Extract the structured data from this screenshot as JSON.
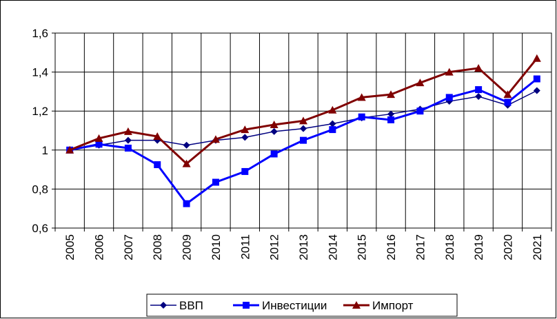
{
  "chart_data": {
    "type": "line",
    "categories": [
      "2005",
      "2006",
      "2007",
      "2008",
      "2009",
      "2010",
      "2011",
      "2012",
      "2013",
      "2014",
      "2015",
      "2016",
      "2017",
      "2018",
      "2019",
      "2020",
      "2021"
    ],
    "series": [
      {
        "name": "ВВП",
        "color": "#000080",
        "marker": "diamond",
        "values": [
          1.0,
          1.025,
          1.05,
          1.05,
          1.025,
          1.05,
          1.065,
          1.095,
          1.11,
          1.135,
          1.165,
          1.185,
          1.21,
          1.25,
          1.275,
          1.23,
          1.305
        ]
      },
      {
        "name": "Инвестиции",
        "color": "#0000ff",
        "marker": "square",
        "values": [
          1.0,
          1.03,
          1.01,
          0.925,
          0.725,
          0.835,
          0.89,
          0.98,
          1.05,
          1.105,
          1.17,
          1.155,
          1.2,
          1.27,
          1.31,
          1.245,
          1.365
        ]
      },
      {
        "name": "Импорт",
        "color": "#800000",
        "marker": "triangle",
        "values": [
          1.0,
          1.06,
          1.095,
          1.07,
          0.93,
          1.055,
          1.105,
          1.13,
          1.15,
          1.205,
          1.27,
          1.285,
          1.345,
          1.4,
          1.42,
          1.285,
          1.47
        ]
      }
    ],
    "ylim": [
      0.6,
      1.6
    ],
    "yticks": [
      {
        "value": 0.6,
        "label": "0,6"
      },
      {
        "value": 0.8,
        "label": "0,8"
      },
      1,
      {
        "value": 1.2,
        "label": "1,2"
      },
      {
        "value": 1.4,
        "label": "1,4"
      },
      {
        "value": 1.6,
        "label": "1,6"
      }
    ],
    "grid": true,
    "legend": "bottom"
  }
}
